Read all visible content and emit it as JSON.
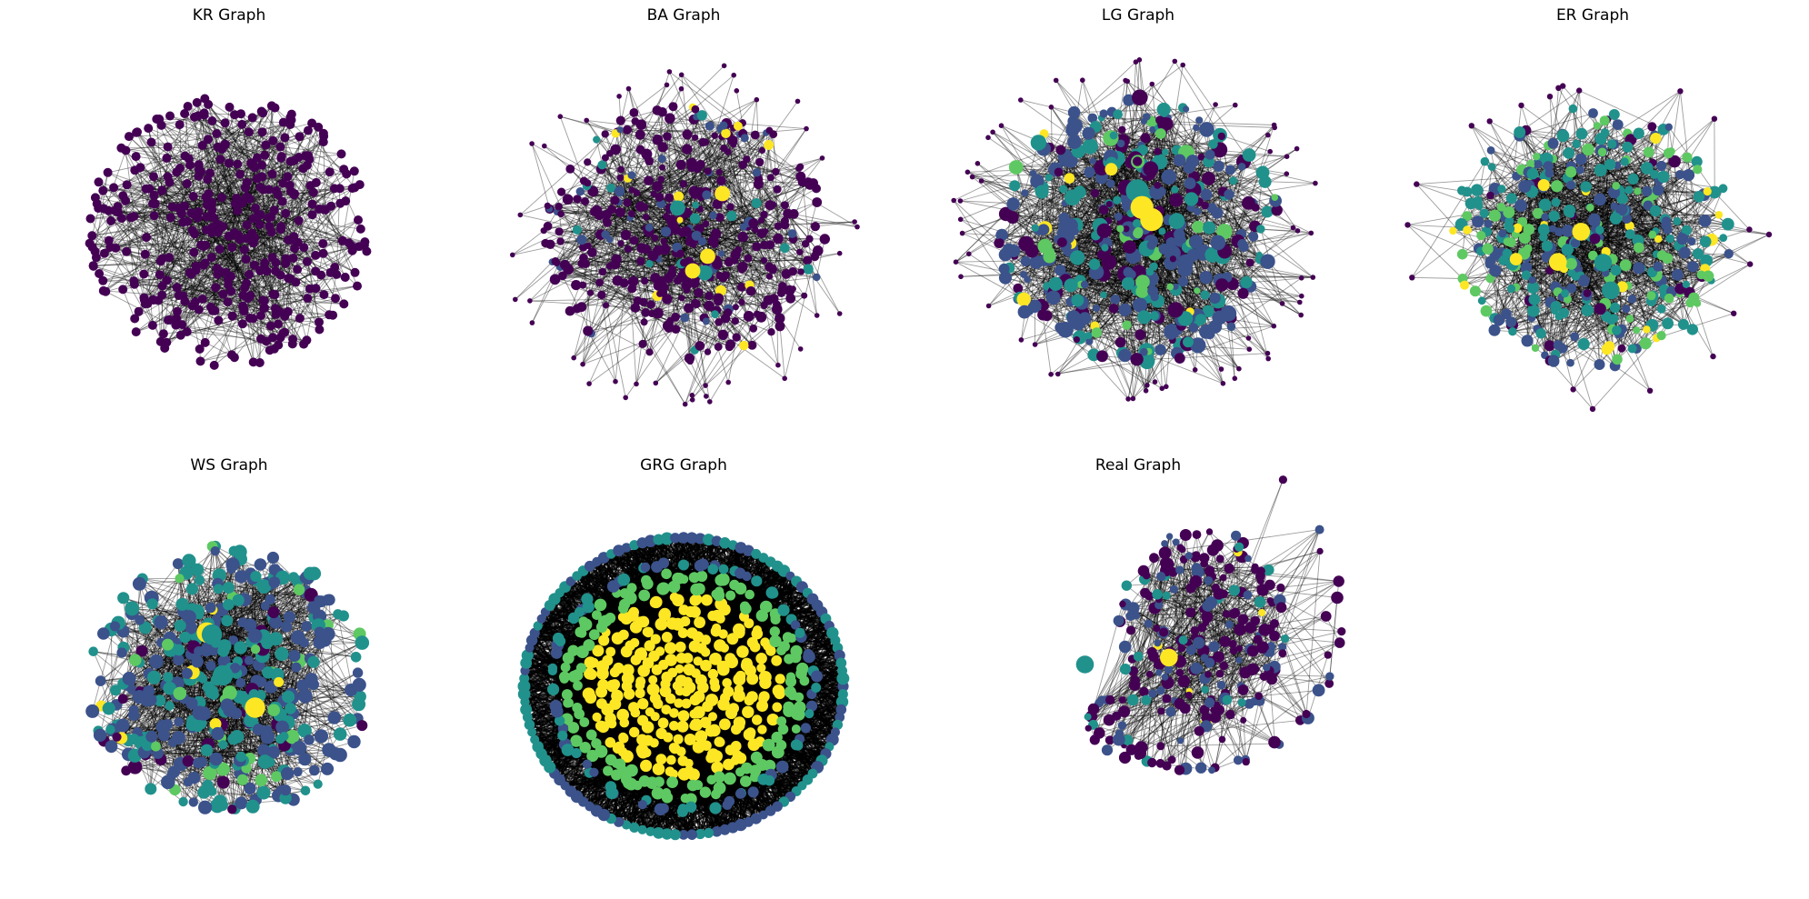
{
  "figure": {
    "colormap": "viridis",
    "edge_color": "#000000",
    "palette": [
      "#440154",
      "#3b528b",
      "#21918c",
      "#5ec962",
      "#fde725"
    ]
  },
  "panels": [
    {
      "title": "KR Graph",
      "shape": "disc",
      "node_color_mix": [
        1.0,
        0,
        0,
        0,
        0
      ],
      "node_sizes": [
        5,
        5
      ],
      "edge_opacity": 0.55,
      "edge_density": "medium",
      "pendant_density": 0,
      "hub_count": 0
    },
    {
      "title": "BA Graph",
      "shape": "disc",
      "node_color_mix": [
        0.78,
        0.13,
        0.04,
        0.0,
        0.05
      ],
      "node_sizes": [
        3.5,
        6
      ],
      "edge_opacity": 0.55,
      "edge_density": "medium",
      "pendant_density": 0.3,
      "hub_count": 5
    },
    {
      "title": "LG Graph",
      "shape": "disc",
      "node_color_mix": [
        0.25,
        0.45,
        0.2,
        0.08,
        0.02
      ],
      "node_sizes": [
        3.5,
        9
      ],
      "edge_opacity": 0.55,
      "edge_density": "dense",
      "pendant_density": 0.45,
      "hub_count": 3
    },
    {
      "title": "ER Graph",
      "shape": "ellipse",
      "node_color_mix": [
        0.08,
        0.35,
        0.3,
        0.22,
        0.05
      ],
      "node_sizes": [
        4,
        7
      ],
      "edge_opacity": 0.55,
      "edge_density": "dense",
      "pendant_density": 0.15,
      "hub_count": 4
    },
    {
      "title": "WS Graph",
      "shape": "disc",
      "node_color_mix": [
        0.05,
        0.45,
        0.38,
        0.1,
        0.02
      ],
      "node_sizes": [
        5,
        8
      ],
      "edge_opacity": 0.55,
      "edge_density": "dense",
      "pendant_density": 0,
      "hub_count": 4
    },
    {
      "title": "GRG Graph",
      "shape": "rings",
      "node_color_mix": [
        0,
        0.05,
        0.25,
        0.25,
        0.45
      ],
      "node_sizes": [
        5,
        7
      ],
      "edge_opacity": 0.9,
      "edge_density": "solid",
      "pendant_density": 0,
      "hub_count": 0
    },
    {
      "title": "Real Graph",
      "shape": "real",
      "node_color_mix": [
        0.6,
        0.3,
        0.08,
        0.0,
        0.02
      ],
      "node_sizes": [
        3.5,
        7
      ],
      "edge_opacity": 0.55,
      "edge_density": "medium",
      "pendant_density": 0.4,
      "hub_count": 2
    }
  ]
}
